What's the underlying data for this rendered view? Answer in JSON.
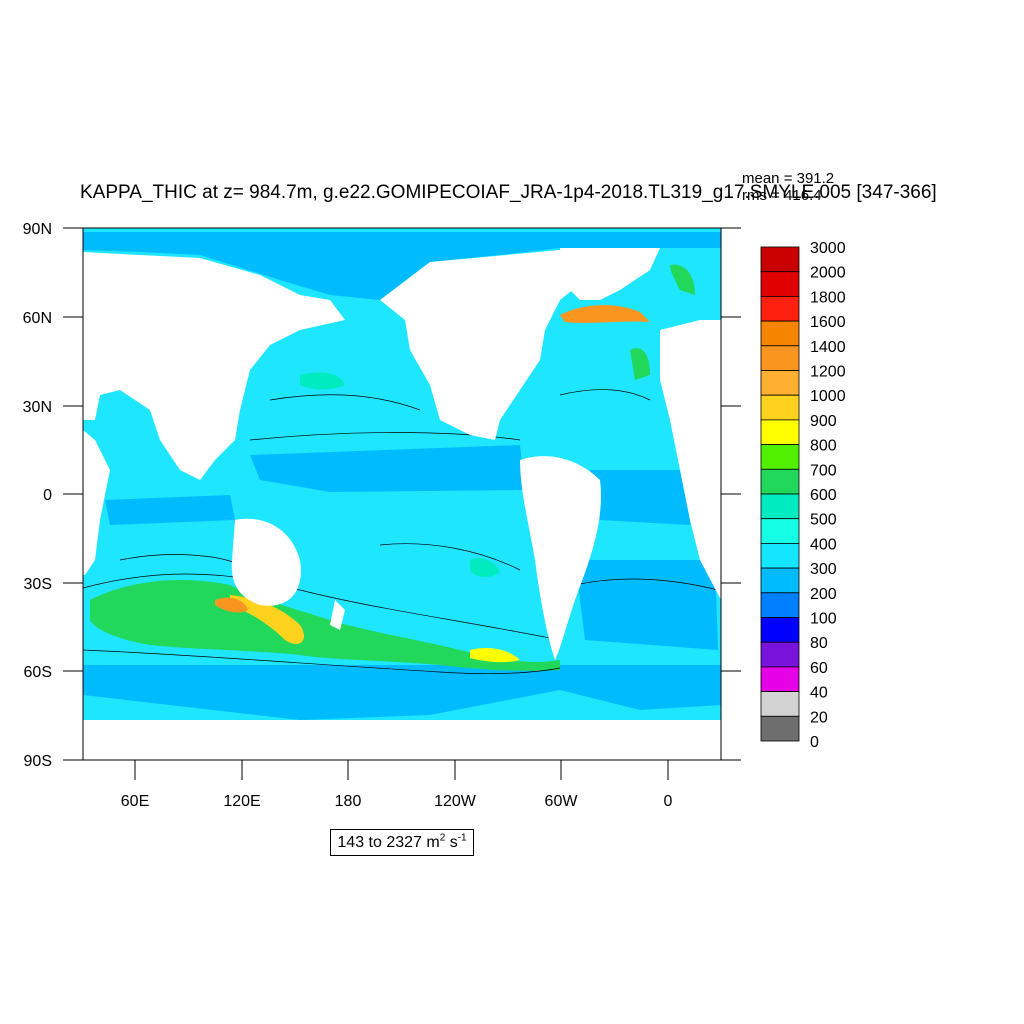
{
  "title": "KAPPA_THIC at z= 984.7m, g.e22.GOMIPECOIAF_JRA-1p4-2018.TL319_g17.SMYLE.005 [347-366]",
  "stats": {
    "mean": "mean = 391.2",
    "rms": "rms = 416.4"
  },
  "range_label": {
    "prefix": "143 to 2327 m",
    "exp1": "2",
    "mid": " s",
    "exp2": "-1"
  },
  "axes": {
    "y_ticks": [
      "90N",
      "60N",
      "30N",
      "0",
      "30S",
      "60S",
      "90S"
    ],
    "x_ticks": [
      "60E",
      "120E",
      "180",
      "120W",
      "60W",
      "0"
    ]
  },
  "colorbar": {
    "levels": [
      "3000",
      "2000",
      "1800",
      "1600",
      "1400",
      "1200",
      "1000",
      "900",
      "800",
      "700",
      "600",
      "500",
      "400",
      "300",
      "200",
      "100",
      "80",
      "60",
      "40",
      "20",
      "0"
    ],
    "colors": [
      "#c80000",
      "#e00000",
      "#ff2010",
      "#f58400",
      "#fa9520",
      "#ffb030",
      "#ffd21e",
      "#ffff00",
      "#50f000",
      "#21d85a",
      "#00ebc0",
      "#14ffe5",
      "#14e6ff",
      "#00bcff",
      "#0080ff",
      "#0000ff",
      "#7814dc",
      "#e600e6",
      "#d2d2d2",
      "#6e6e6e"
    ]
  },
  "map": {
    "ocean_color": "#1ee6ff",
    "land_color": "#ffffff",
    "arctic_color": "#00bcff",
    "contour_color": "#000000"
  }
}
